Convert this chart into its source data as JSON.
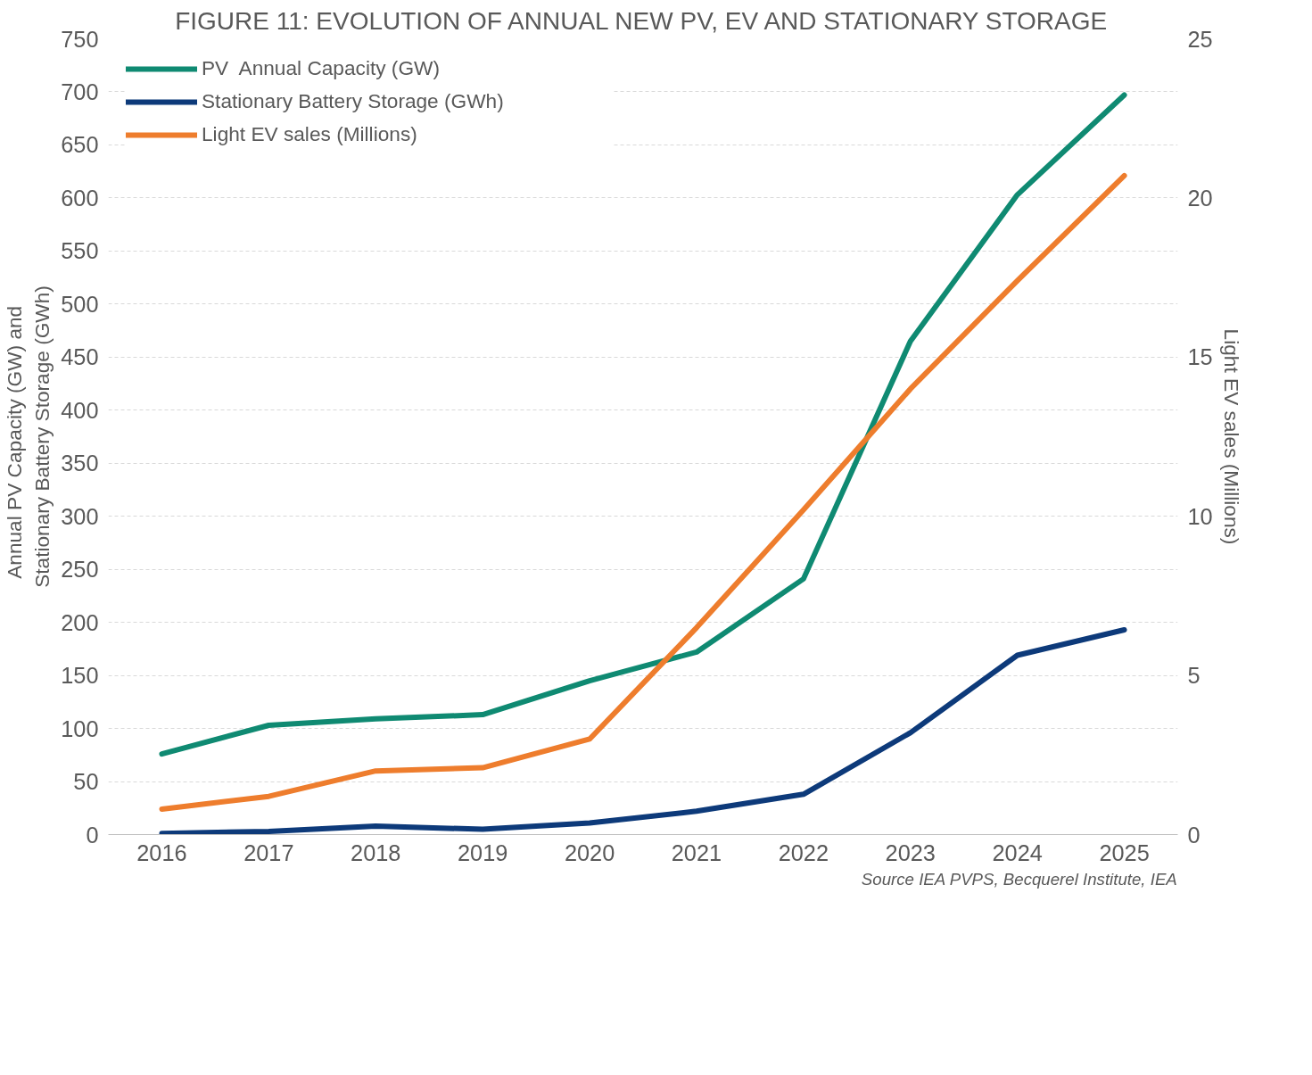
{
  "chart_data": {
    "type": "line",
    "title": "FIGURE 11: EVOLUTION OF ANNUAL NEW PV, EV AND STATIONARY STORAGE",
    "ylabel": "Annual  PV Capacity  (GW) and\nStationary Battery Storage (GWh)",
    "y2label": "Light EV sales (Millions)",
    "categories": [
      "2016",
      "2017",
      "2018",
      "2019",
      "2020",
      "2021",
      "2022",
      "2023",
      "2024",
      "2025"
    ],
    "series": [
      {
        "name": "PV  Annual Capacity (GW)",
        "color": "#0f8a72",
        "values": [
          76,
          103,
          109,
          113,
          145,
          172,
          241,
          465,
          603,
          697
        ]
      },
      {
        "name": "Stationary Battery Storage (GWh)",
        "color": "#0d3a7a",
        "values": [
          1,
          3,
          8,
          5,
          11,
          22,
          38,
          96,
          169,
          193
        ]
      },
      {
        "name": "Light EV sales (Millions)",
        "color": "#ee7d2d",
        "axis": "y2",
        "values": [
          0.8,
          1.2,
          2.0,
          2.1,
          3.0,
          6.5,
          10.2,
          14.0,
          17.4,
          20.7
        ]
      }
    ],
    "ylim": [
      0,
      750
    ],
    "yticks": [
      0,
      50,
      100,
      150,
      200,
      250,
      300,
      350,
      400,
      450,
      500,
      550,
      600,
      650,
      700,
      750
    ],
    "y2lim": [
      0,
      25
    ],
    "y2ticks": [
      0,
      5,
      10,
      15,
      20,
      25
    ],
    "grid": "y",
    "legend": "top left",
    "marker": "none",
    "line_style": "solid",
    "annotations": [
      "Source IEA PVPS, Becquerel Institute, IEA"
    ]
  }
}
